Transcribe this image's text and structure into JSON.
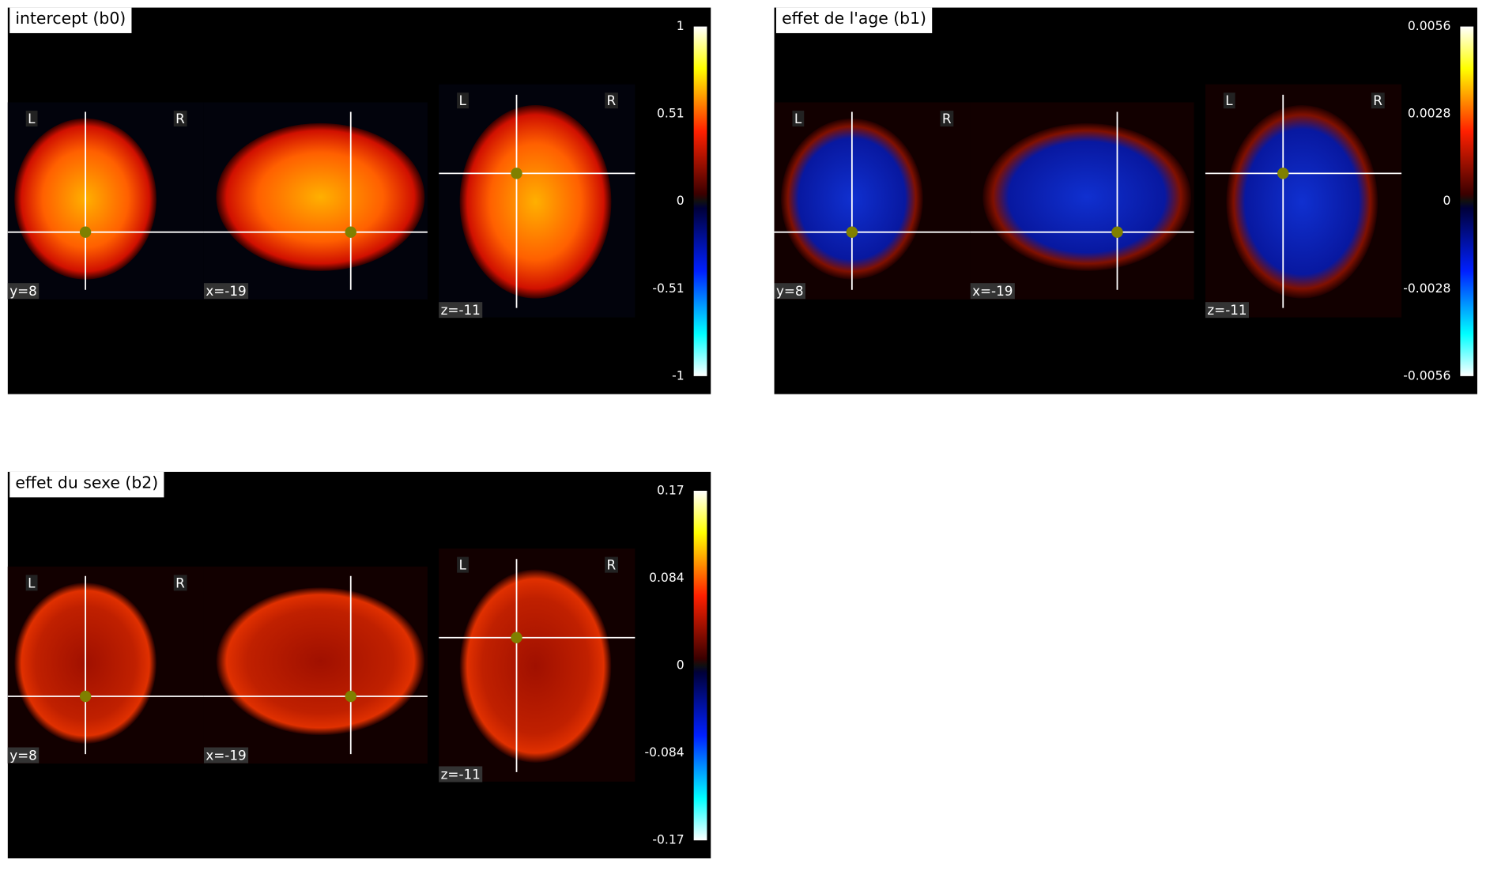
{
  "panels": [
    {
      "title": "intercept (b0)",
      "colorbar_ticks": [
        "1",
        "0.51",
        "0",
        "-0.51",
        "-1"
      ],
      "cuts": [
        "y=8",
        "x=-19",
        "z=-11"
      ],
      "orientation": [
        "L",
        "R"
      ]
    },
    {
      "title": "effet de l'age (b1)",
      "colorbar_ticks": [
        "0.0056",
        "0.0028",
        "0",
        "-0.0028",
        "-0.0056"
      ],
      "cuts": [
        "y=8",
        "x=-19",
        "z=-11"
      ],
      "orientation": [
        "L",
        "R"
      ]
    },
    {
      "title": "effet du sexe (b2)",
      "colorbar_ticks": [
        "0.17",
        "0.084",
        "0",
        "-0.084",
        "-0.17"
      ],
      "cuts": [
        "y=8",
        "x=-19",
        "z=-11"
      ],
      "orientation": [
        "L",
        "R"
      ]
    }
  ]
}
